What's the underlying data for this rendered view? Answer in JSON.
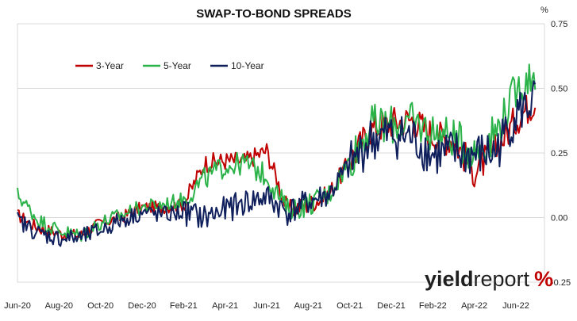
{
  "chart_data": {
    "type": "line",
    "title": "SWAP-TO-BOND SPREADS",
    "ylabel": "%",
    "ylim": [
      -0.25,
      0.75
    ],
    "yticks": [
      "0.75",
      "0.50",
      "0.25",
      "0.00",
      "-0.25"
    ],
    "ytick_values": [
      0.75,
      0.5,
      0.25,
      0.0,
      -0.25
    ],
    "xticks": [
      "Jun-20",
      "Aug-20",
      "Oct-20",
      "Dec-20",
      "Feb-21",
      "Apr-21",
      "Jun-21",
      "Aug-21",
      "Oct-21",
      "Dec-21",
      "Feb-22",
      "Apr-22",
      "Jun-22"
    ],
    "grid": "horizontal",
    "legend_position": "top-left",
    "colors": {
      "3-Year": "#c00000",
      "5-Year": "#2bb34a",
      "10-Year": "#0f1f5c"
    },
    "x_dates": [
      "Jun-20",
      "Jul-20",
      "Aug-20",
      "Sep-20",
      "Oct-20",
      "Nov-20",
      "Dec-20",
      "Jan-21",
      "Feb-21",
      "Mar-21",
      "Apr-21",
      "May-21",
      "Jun-21",
      "Jul-21",
      "Aug-21",
      "Sep-21",
      "Oct-21",
      "Nov-21",
      "Dec-21",
      "Jan-22",
      "Feb-22",
      "Mar-22",
      "Apr-22",
      "May-22",
      "Jun-22",
      "Jul-22"
    ],
    "series": [
      {
        "name": "3-Year",
        "values": [
          0.01,
          -0.04,
          -0.06,
          -0.07,
          -0.02,
          0.0,
          0.04,
          0.04,
          0.05,
          0.21,
          0.22,
          0.22,
          0.26,
          0.03,
          0.05,
          0.09,
          0.22,
          0.34,
          0.37,
          0.38,
          0.32,
          0.3,
          0.18,
          0.26,
          0.38,
          0.46
        ]
      },
      {
        "name": "5-Year",
        "values": [
          0.09,
          -0.01,
          -0.05,
          -0.07,
          -0.02,
          0.01,
          0.04,
          0.05,
          0.07,
          0.15,
          0.2,
          0.21,
          0.16,
          0.03,
          0.05,
          0.09,
          0.22,
          0.36,
          0.36,
          0.37,
          0.33,
          0.31,
          0.25,
          0.33,
          0.49,
          0.57
        ]
      },
      {
        "name": "10-Year",
        "values": [
          -0.01,
          -0.06,
          -0.08,
          -0.08,
          -0.05,
          -0.01,
          0.02,
          0.01,
          0.02,
          0.0,
          0.03,
          0.06,
          0.08,
          0.02,
          0.06,
          0.09,
          0.2,
          0.3,
          0.32,
          0.31,
          0.24,
          0.25,
          0.24,
          0.25,
          0.4,
          0.46
        ]
      }
    ],
    "brand": {
      "part1": "yield",
      "part2": "report",
      "part3": "%"
    }
  }
}
